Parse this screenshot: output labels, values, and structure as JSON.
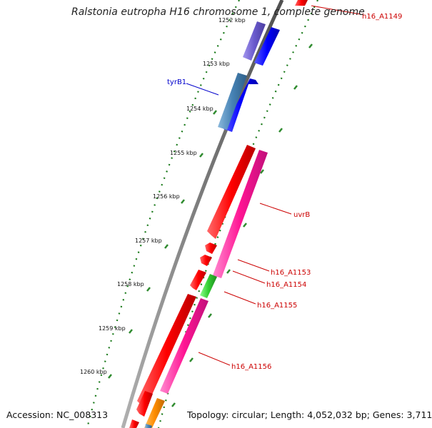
{
  "title": "Ralstonia eutropha H16 chromosome 1, complete genome",
  "accession": "Accession: NC_008313",
  "summary": "Topology: circular; Length: 4,052,032 bp; Genes: 3,711",
  "colors": {
    "backbone": "#808080",
    "label_red": "#cc0000",
    "label_blue": "#0000cc",
    "tick_green": "#2e8b2e",
    "dot_green": "#1a7a1a"
  },
  "kbp_ticks": [
    "1252 kbp",
    "1253 kbp",
    "1254 kbp",
    "1255 kbp",
    "1256 kbp",
    "1257 kbp",
    "1258 kbp",
    "1259 kbp",
    "1260 kbp"
  ],
  "gene_labels": [
    {
      "name": "h16_A1149",
      "color": "red"
    },
    {
      "name": "tyrB1",
      "color": "blue"
    },
    {
      "name": "uvrB",
      "color": "red"
    },
    {
      "name": "h16_A1153",
      "color": "red"
    },
    {
      "name": "h16_A1154",
      "color": "red"
    },
    {
      "name": "h16_A1155",
      "color": "red"
    },
    {
      "name": "h16_A1156",
      "color": "red"
    }
  ]
}
